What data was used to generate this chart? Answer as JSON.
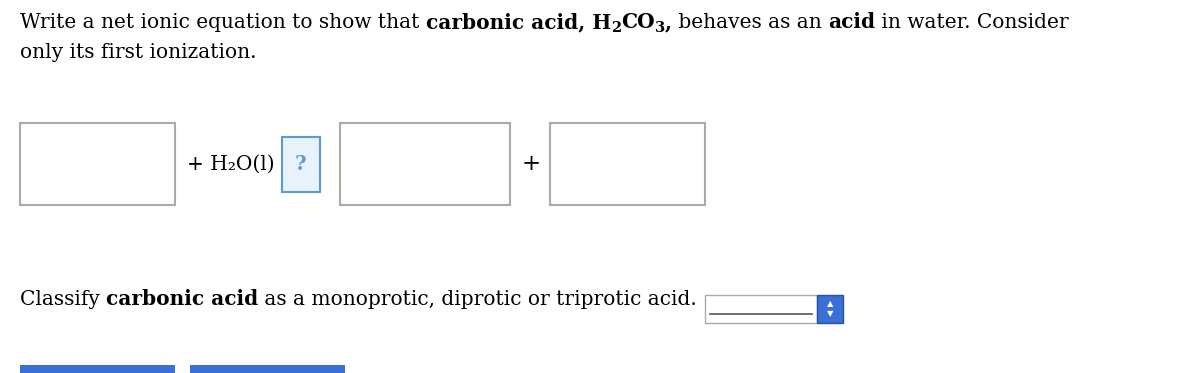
{
  "background_color": "#ffffff",
  "font_size_main": 14.5,
  "box_edge_color": "#aaaaaa",
  "question_box_border": "#5b9bd5",
  "question_box_bg": "#5b9bd5",
  "blue_color": "#3a6fd8",
  "text_color": "#000000",
  "line1_normal1": "Write a net ionic equation to show that ",
  "line1_bold1": "carbonic acid, H",
  "line1_sub1": "2",
  "line1_bold2": "CO",
  "line1_sub2": "3",
  "line1_bold3": ",",
  "line1_normal2": " behaves as an ",
  "line1_bold4": "acid",
  "line1_normal3": " in water. Consider",
  "line2": "only its first ionization.",
  "h2o_text": "+ H₂O(l)",
  "plus_text": "+",
  "question_mark": "?",
  "classify_normal1": "Classify ",
  "classify_bold": "carbonic acid",
  "classify_normal2": " as a monoprotic, diprotic or triprotic acid.",
  "fig_width": 12.0,
  "fig_height": 3.73,
  "dpi": 100
}
